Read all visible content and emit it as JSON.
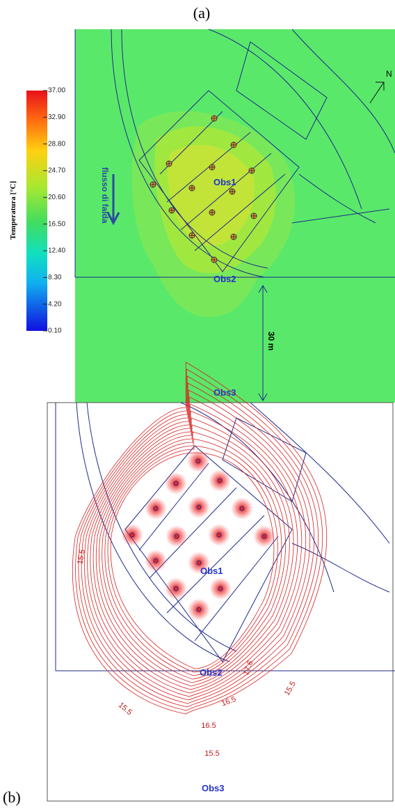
{
  "panel_a": {
    "label": "(a)",
    "colorbar": {
      "title": "Temperatura [°C]",
      "ticks": [
        "37.00",
        "32.90",
        "28.80",
        "24.70",
        "20.60",
        "16.50",
        "12.40",
        "8.30",
        "4.20",
        "0.10"
      ]
    },
    "flow_label": "flusso di falda",
    "north": "N",
    "observations": [
      "Obs1",
      "Obs2",
      "Obs3"
    ],
    "distance": "30 m"
  },
  "panel_b": {
    "label": "(b)",
    "observations": [
      "Obs1",
      "Obs2",
      "Obs3"
    ],
    "contour_labels": [
      "15.5",
      "15.5",
      "16.5",
      "17.6",
      "15.5",
      "15.5",
      "16.5"
    ]
  }
}
